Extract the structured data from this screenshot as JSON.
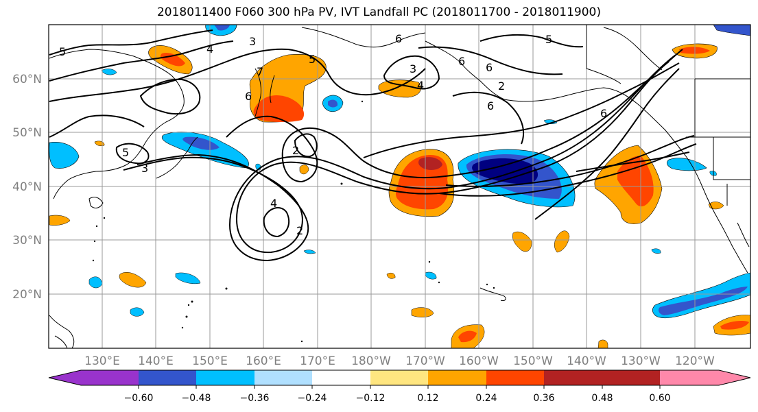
{
  "title": "2018011400 F060 300 hPa PV, IVT Landfall PC (2018011700 - 2018011900)",
  "latitude_labels": [
    "60°N",
    "50°N",
    "40°N",
    "30°N",
    "20°N"
  ],
  "longitude_labels": [
    "130°E",
    "140°E",
    "150°E",
    "160°E",
    "170°E",
    "180°W",
    "170°W",
    "160°W",
    "150°W",
    "140°W",
    "130°W",
    "120°W"
  ],
  "contour_labels": [
    "5",
    "4",
    "3",
    "6",
    "5",
    "3",
    "4",
    "6",
    "5",
    "7",
    "6",
    "6",
    "6",
    "2",
    "5",
    "3",
    "2",
    "4",
    "2",
    "6"
  ],
  "colorbar": {
    "ticks": [
      "−0.60",
      "−0.48",
      "−0.36",
      "−0.24",
      "−0.12",
      "0.12",
      "0.24",
      "0.36",
      "0.48",
      "0.60"
    ],
    "colors": [
      "#9933cc",
      "#000080",
      "#3355cc",
      "#00bfff",
      "#b0e0ff",
      "#ffffff",
      "#ffe680",
      "#ffa500",
      "#ff4500",
      "#b22222",
      "#ff88aa"
    ]
  },
  "colors": {
    "frame": "#000000",
    "grid": "#999999",
    "contour": "#000000",
    "coast": "#000000",
    "label_gray": "#808080"
  }
}
